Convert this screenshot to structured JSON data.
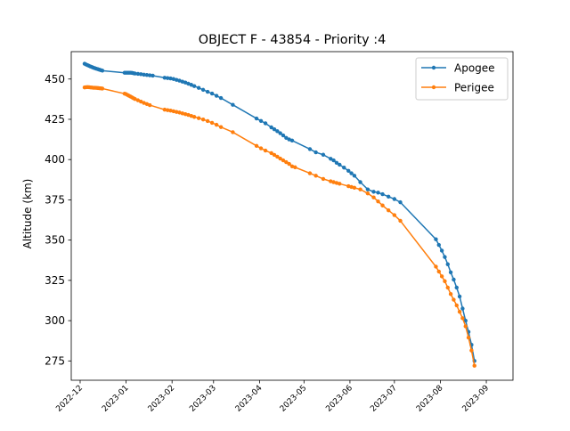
{
  "chart_data": {
    "type": "line",
    "title": "OBJECT F - 43854 - Priority :4",
    "xlabel": "",
    "ylabel": "Altitude (km)",
    "x_type": "date",
    "xlim": [
      "2022-11-25",
      "2023-09-19"
    ],
    "ylim": [
      263,
      467
    ],
    "grid": false,
    "legend_position": "top-right",
    "x_ticks": [
      "2022-12",
      "2023-01",
      "2023-02",
      "2023-03",
      "2023-04",
      "2023-05",
      "2023-06",
      "2023-07",
      "2023-08",
      "2023-09"
    ],
    "y_ticks": [
      275,
      300,
      325,
      350,
      375,
      400,
      425,
      450
    ],
    "series": [
      {
        "name": "Apogee",
        "color": "#1f77b4",
        "points": [
          [
            "2022-12-04",
            459.5
          ],
          [
            "2022-12-05",
            459.0
          ],
          [
            "2022-12-06",
            458.6
          ],
          [
            "2022-12-07",
            458.2
          ],
          [
            "2022-12-08",
            457.8
          ],
          [
            "2022-12-09",
            457.4
          ],
          [
            "2022-12-10",
            457.0
          ],
          [
            "2022-12-11",
            456.7
          ],
          [
            "2022-12-12",
            456.4
          ],
          [
            "2022-12-13",
            456.1
          ],
          [
            "2022-12-14",
            455.8
          ],
          [
            "2022-12-15",
            455.5
          ],
          [
            "2022-12-16",
            455.2
          ],
          [
            "2022-12-31",
            453.9
          ],
          [
            "2023-01-01",
            453.9
          ],
          [
            "2023-01-02",
            453.9
          ],
          [
            "2023-01-03",
            453.9
          ],
          [
            "2023-01-04",
            453.9
          ],
          [
            "2023-01-05",
            453.8
          ],
          [
            "2023-01-06",
            453.6
          ],
          [
            "2023-01-07",
            453.4
          ],
          [
            "2023-01-09",
            453.2
          ],
          [
            "2023-01-11",
            453.0
          ],
          [
            "2023-01-13",
            452.7
          ],
          [
            "2023-01-15",
            452.5
          ],
          [
            "2023-01-17",
            452.3
          ],
          [
            "2023-01-19",
            452.1
          ],
          [
            "2023-01-27",
            450.8
          ],
          [
            "2023-01-29",
            450.6
          ],
          [
            "2023-01-31",
            450.4
          ],
          [
            "2023-02-02",
            450.0
          ],
          [
            "2023-02-04",
            449.5
          ],
          [
            "2023-02-06",
            449.0
          ],
          [
            "2023-02-08",
            448.4
          ],
          [
            "2023-02-10",
            447.8
          ],
          [
            "2023-02-12",
            447.1
          ],
          [
            "2023-02-14",
            446.4
          ],
          [
            "2023-02-16",
            445.6
          ],
          [
            "2023-02-19",
            444.5
          ],
          [
            "2023-02-22",
            443.3
          ],
          [
            "2023-02-25",
            442.1
          ],
          [
            "2023-02-28",
            441.0
          ],
          [
            "2023-03-03",
            439.6
          ],
          [
            "2023-03-06",
            438.2
          ],
          [
            "2023-03-14",
            434.0
          ],
          [
            "2023-03-30",
            425.5
          ],
          [
            "2023-04-02",
            424.0
          ],
          [
            "2023-04-05",
            422.5
          ],
          [
            "2023-04-09",
            420.0
          ],
          [
            "2023-04-11",
            418.8
          ],
          [
            "2023-04-13",
            417.6
          ],
          [
            "2023-04-15",
            416.4
          ],
          [
            "2023-04-17",
            415.0
          ],
          [
            "2023-04-19",
            413.5
          ],
          [
            "2023-04-21",
            412.5
          ],
          [
            "2023-04-23",
            411.8
          ],
          [
            "2023-05-05",
            406.5
          ],
          [
            "2023-05-09",
            404.5
          ],
          [
            "2023-05-14",
            403.0
          ],
          [
            "2023-05-19",
            400.5
          ],
          [
            "2023-05-21",
            399.5
          ],
          [
            "2023-05-23",
            398.0
          ],
          [
            "2023-05-25",
            396.8
          ],
          [
            "2023-05-28",
            395.0
          ],
          [
            "2023-05-31",
            393.0
          ],
          [
            "2023-06-02",
            391.5
          ],
          [
            "2023-06-04",
            390.0
          ],
          [
            "2023-06-08",
            386.0
          ],
          [
            "2023-06-13",
            381.5
          ],
          [
            "2023-06-17",
            380.0
          ],
          [
            "2023-06-20",
            379.5
          ],
          [
            "2023-06-23",
            378.5
          ],
          [
            "2023-06-27",
            377.0
          ],
          [
            "2023-07-01",
            375.5
          ],
          [
            "2023-07-05",
            373.5
          ],
          [
            "2023-07-29",
            350.5
          ],
          [
            "2023-07-31",
            347.0
          ],
          [
            "2023-08-02",
            343.5
          ],
          [
            "2023-08-04",
            339.5
          ],
          [
            "2023-08-06",
            335.0
          ],
          [
            "2023-08-08",
            330.0
          ],
          [
            "2023-08-10",
            325.5
          ],
          [
            "2023-08-12",
            320.5
          ],
          [
            "2023-08-14",
            315.0
          ],
          [
            "2023-08-16",
            307.5
          ],
          [
            "2023-08-18",
            300.0
          ],
          [
            "2023-08-20",
            293.0
          ],
          [
            "2023-08-22",
            285.0
          ],
          [
            "2023-08-24",
            275.0
          ]
        ]
      },
      {
        "name": "Perigee",
        "color": "#ff7f0e",
        "points": [
          [
            "2022-12-04",
            444.8
          ],
          [
            "2022-12-05",
            444.9
          ],
          [
            "2022-12-06",
            445.0
          ],
          [
            "2022-12-07",
            444.9
          ],
          [
            "2022-12-08",
            444.8
          ],
          [
            "2022-12-09",
            444.7
          ],
          [
            "2022-12-10",
            444.6
          ],
          [
            "2022-12-11",
            444.6
          ],
          [
            "2022-12-12",
            444.5
          ],
          [
            "2022-12-13",
            444.4
          ],
          [
            "2022-12-14",
            444.3
          ],
          [
            "2022-12-15",
            444.2
          ],
          [
            "2022-12-16",
            444.1
          ],
          [
            "2022-12-31",
            440.9
          ],
          [
            "2023-01-01",
            440.6
          ],
          [
            "2023-01-02",
            440.1
          ],
          [
            "2023-01-03",
            439.6
          ],
          [
            "2023-01-04",
            439.1
          ],
          [
            "2023-01-05",
            438.6
          ],
          [
            "2023-01-06",
            438.1
          ],
          [
            "2023-01-07",
            437.6
          ],
          [
            "2023-01-09",
            436.8
          ],
          [
            "2023-01-11",
            436.0
          ],
          [
            "2023-01-13",
            435.2
          ],
          [
            "2023-01-15",
            434.5
          ],
          [
            "2023-01-17",
            433.8
          ],
          [
            "2023-01-27",
            431.0
          ],
          [
            "2023-01-29",
            430.7
          ],
          [
            "2023-01-31",
            430.4
          ],
          [
            "2023-02-02",
            430.0
          ],
          [
            "2023-02-04",
            429.6
          ],
          [
            "2023-02-06",
            429.2
          ],
          [
            "2023-02-08",
            428.7
          ],
          [
            "2023-02-10",
            428.2
          ],
          [
            "2023-02-12",
            427.7
          ],
          [
            "2023-02-14",
            427.1
          ],
          [
            "2023-02-16",
            426.5
          ],
          [
            "2023-02-19",
            425.7
          ],
          [
            "2023-02-22",
            424.9
          ],
          [
            "2023-02-25",
            423.9
          ],
          [
            "2023-02-28",
            422.8
          ],
          [
            "2023-03-03",
            421.6
          ],
          [
            "2023-03-06",
            420.2
          ],
          [
            "2023-03-14",
            417.0
          ],
          [
            "2023-03-30",
            408.5
          ],
          [
            "2023-04-02",
            407.0
          ],
          [
            "2023-04-05",
            405.6
          ],
          [
            "2023-04-09",
            404.0
          ],
          [
            "2023-04-11",
            402.9
          ],
          [
            "2023-04-13",
            401.8
          ],
          [
            "2023-04-15",
            400.6
          ],
          [
            "2023-04-17",
            399.5
          ],
          [
            "2023-04-19",
            398.4
          ],
          [
            "2023-04-21",
            397.3
          ],
          [
            "2023-04-23",
            395.8
          ],
          [
            "2023-04-25",
            395.2
          ],
          [
            "2023-05-05",
            391.5
          ],
          [
            "2023-05-09",
            390.0
          ],
          [
            "2023-05-14",
            388.0
          ],
          [
            "2023-05-19",
            386.5
          ],
          [
            "2023-05-21",
            386.0
          ],
          [
            "2023-05-23",
            385.5
          ],
          [
            "2023-05-25",
            385.0
          ],
          [
            "2023-05-31",
            383.5
          ],
          [
            "2023-06-02",
            383.0
          ],
          [
            "2023-06-04",
            382.5
          ],
          [
            "2023-06-08",
            381.5
          ],
          [
            "2023-06-13",
            379.0
          ],
          [
            "2023-06-17",
            376.5
          ],
          [
            "2023-06-20",
            374.0
          ],
          [
            "2023-06-23",
            371.5
          ],
          [
            "2023-06-27",
            368.5
          ],
          [
            "2023-07-01",
            365.5
          ],
          [
            "2023-07-05",
            362.0
          ],
          [
            "2023-07-29",
            333.5
          ],
          [
            "2023-07-31",
            330.5
          ],
          [
            "2023-08-02",
            327.5
          ],
          [
            "2023-08-04",
            324.5
          ],
          [
            "2023-08-06",
            320.5
          ],
          [
            "2023-08-08",
            316.5
          ],
          [
            "2023-08-10",
            313.0
          ],
          [
            "2023-08-12",
            309.5
          ],
          [
            "2023-08-14",
            305.5
          ],
          [
            "2023-08-16",
            301.5
          ],
          [
            "2023-08-18",
            296.5
          ],
          [
            "2023-08-20",
            289.5
          ],
          [
            "2023-08-22",
            281.5
          ],
          [
            "2023-08-24",
            272.0
          ]
        ]
      }
    ]
  }
}
